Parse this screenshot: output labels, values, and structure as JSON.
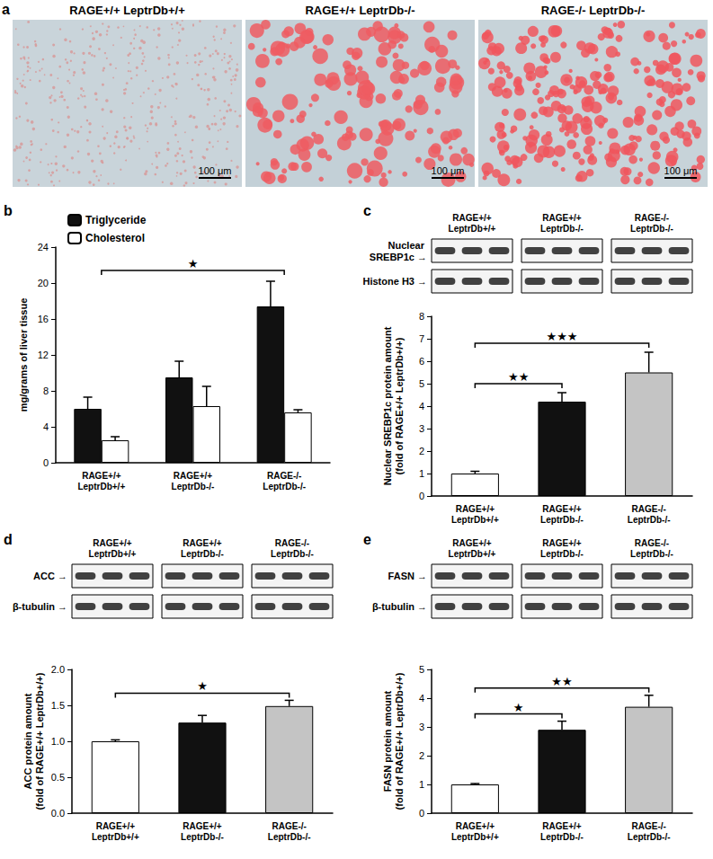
{
  "panel_a": {
    "label": "a",
    "images": [
      {
        "title": "RAGE+/+ LeptrDb+/+",
        "scale_bar": "100 μm"
      },
      {
        "title": "RAGE+/+ LeptrDb-/-",
        "scale_bar": "100 μm"
      },
      {
        "title": "RAGE-/- LeptrDb-/-",
        "scale_bar": "100 μm"
      }
    ]
  },
  "chart_data": [
    {
      "type": "bar",
      "title": "b",
      "categories": [
        "RAGE+/+ LeptrDb+/+",
        "RAGE+/+ LeptrDb-/-",
        "RAGE-/- LeptrDb-/-"
      ],
      "series": [
        {
          "name": "Triglyceride",
          "color": "#111111",
          "values": [
            6.0,
            9.5,
            17.4
          ],
          "errors": [
            1.3,
            1.8,
            2.8
          ]
        },
        {
          "name": "Cholesterol",
          "color": "#ffffff",
          "values": [
            2.5,
            6.3,
            5.6
          ],
          "errors": [
            0.4,
            2.2,
            0.3
          ]
        }
      ],
      "ylabel": "mg/grams of liver tissue",
      "ylim": [
        0,
        24
      ],
      "yticks": [
        0,
        4,
        8,
        12,
        16,
        20,
        24
      ],
      "grid": false,
      "legend": "top-left",
      "annotations": [
        {
          "from": 0,
          "to": 2,
          "text": "★"
        }
      ]
    },
    {
      "type": "bar",
      "title": "c",
      "blot": [
        "Nuclear SREBP1c →",
        "Histone H3 →"
      ],
      "categories": [
        "RAGE+/+ LeptrDb+/+",
        "RAGE+/+ LeptrDb-/-",
        "RAGE-/- LeptrDb-/-"
      ],
      "values": [
        1.0,
        4.2,
        5.5
      ],
      "errors": [
        0.1,
        0.4,
        0.9
      ],
      "colors": [
        "#ffffff",
        "#111111",
        "#c4c4c4"
      ],
      "ylabel": "Nuclear SREBP1c protein amount\n(fold of RAGE+/+ LeptrDb+/+)",
      "ylim": [
        0,
        8
      ],
      "yticks": [
        0,
        1,
        2,
        3,
        4,
        5,
        6,
        7,
        8
      ],
      "grid": false,
      "annotations": [
        {
          "from": 0,
          "to": 1,
          "text": "★★"
        },
        {
          "from": 0,
          "to": 2,
          "text": "★★★"
        }
      ]
    },
    {
      "type": "bar",
      "title": "d",
      "blot": [
        "ACC →",
        "β-tubulin →"
      ],
      "categories": [
        "RAGE+/+ LeptrDb+/+",
        "RAGE+/+ LeptrDb-/-",
        "RAGE-/- LeptrDb-/-"
      ],
      "values": [
        1.0,
        1.26,
        1.49
      ],
      "errors": [
        0.02,
        0.1,
        0.08
      ],
      "colors": [
        "#ffffff",
        "#111111",
        "#c4c4c4"
      ],
      "ylabel": "ACC protein amount\n(fold of RAGE+/+ LeptrDb+/+)",
      "ylim": [
        0,
        2
      ],
      "yticks": [
        {
          "value": 0,
          "label": "0.0"
        },
        0.5,
        {
          "value": 1,
          "label": "1.0"
        },
        1.5,
        {
          "value": 2,
          "label": "2.0"
        }
      ],
      "grid": false,
      "annotations": [
        {
          "from": 0,
          "to": 2,
          "text": "★"
        }
      ]
    },
    {
      "type": "bar",
      "title": "e",
      "blot": [
        "FASN →",
        "β-tubulin →"
      ],
      "categories": [
        "RAGE+/+ LeptrDb+/+",
        "RAGE+/+ LeptrDb-/-",
        "RAGE-/- LeptrDb-/-"
      ],
      "values": [
        1.0,
        2.9,
        3.7
      ],
      "errors": [
        0.03,
        0.3,
        0.4
      ],
      "colors": [
        "#ffffff",
        "#111111",
        "#c4c4c4"
      ],
      "ylabel": "FASN protein amount\n(fold of RAGE+/+ LeptrDb+/+)",
      "ylim": [
        0,
        5
      ],
      "yticks": [
        0,
        1,
        2,
        3,
        4,
        5
      ],
      "grid": false,
      "annotations": [
        {
          "from": 0,
          "to": 1,
          "text": "★"
        },
        {
          "from": 0,
          "to": 2,
          "text": "★★"
        }
      ]
    }
  ]
}
